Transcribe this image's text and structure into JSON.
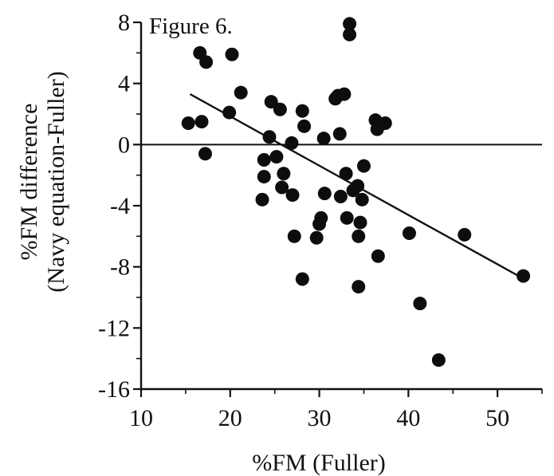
{
  "chart_data": {
    "type": "scatter",
    "title": "Figure 6.",
    "xlabel": "%FM (Fuller)",
    "ylabel_line1": "%FM difference",
    "ylabel_line2": "(Navy equation-Fuller)",
    "xlim": [
      10,
      55
    ],
    "ylim": [
      -16,
      8
    ],
    "x_ticks": [
      10,
      20,
      30,
      40,
      50
    ],
    "y_ticks": [
      8,
      4,
      0,
      -4,
      -8,
      -12,
      -16
    ],
    "x_tick_labels": [
      "10",
      "20",
      "30",
      "40",
      "50"
    ],
    "y_tick_labels": [
      "8",
      "4",
      "0",
      "-4",
      "-8",
      "-12",
      "-16"
    ],
    "zero_line": true,
    "grid": false,
    "trendline": {
      "x": [
        15.5,
        53
      ],
      "y": [
        3.3,
        -8.8
      ]
    },
    "points": [
      {
        "x": 15.3,
        "y": 1.4
      },
      {
        "x": 16.6,
        "y": 6.0
      },
      {
        "x": 16.8,
        "y": 1.5
      },
      {
        "x": 17.3,
        "y": 5.4
      },
      {
        "x": 17.2,
        "y": -0.6
      },
      {
        "x": 20.2,
        "y": 5.9
      },
      {
        "x": 19.9,
        "y": 2.1
      },
      {
        "x": 21.2,
        "y": 3.4
      },
      {
        "x": 23.6,
        "y": -3.6
      },
      {
        "x": 23.8,
        "y": -2.1
      },
      {
        "x": 23.8,
        "y": -1.0
      },
      {
        "x": 24.4,
        "y": 0.5
      },
      {
        "x": 24.6,
        "y": 2.8
      },
      {
        "x": 25.2,
        "y": -0.8
      },
      {
        "x": 25.6,
        "y": 2.3
      },
      {
        "x": 25.8,
        "y": -2.8
      },
      {
        "x": 26.0,
        "y": -1.9
      },
      {
        "x": 26.9,
        "y": 0.1
      },
      {
        "x": 27.0,
        "y": -3.3
      },
      {
        "x": 27.2,
        "y": -6.0
      },
      {
        "x": 28.1,
        "y": 2.2
      },
      {
        "x": 28.3,
        "y": 1.2
      },
      {
        "x": 28.1,
        "y": -8.8
      },
      {
        "x": 29.7,
        "y": -6.1
      },
      {
        "x": 30.0,
        "y": -5.2
      },
      {
        "x": 30.2,
        "y": -4.8
      },
      {
        "x": 30.5,
        "y": 0.4
      },
      {
        "x": 30.6,
        "y": -3.2
      },
      {
        "x": 31.8,
        "y": 3.0
      },
      {
        "x": 32.1,
        "y": 3.2
      },
      {
        "x": 32.3,
        "y": 0.7
      },
      {
        "x": 32.4,
        "y": -3.4
      },
      {
        "x": 32.8,
        "y": 3.3
      },
      {
        "x": 33.0,
        "y": -1.9
      },
      {
        "x": 33.1,
        "y": -4.8
      },
      {
        "x": 33.4,
        "y": 7.9
      },
      {
        "x": 33.4,
        "y": 7.2
      },
      {
        "x": 33.8,
        "y": -3.0
      },
      {
        "x": 34.3,
        "y": -2.7
      },
      {
        "x": 34.6,
        "y": -5.1
      },
      {
        "x": 34.4,
        "y": -6.0
      },
      {
        "x": 34.4,
        "y": -9.3
      },
      {
        "x": 34.8,
        "y": -3.6
      },
      {
        "x": 35.0,
        "y": -1.4
      },
      {
        "x": 36.3,
        "y": 1.6
      },
      {
        "x": 36.5,
        "y": 1.0
      },
      {
        "x": 37.4,
        "y": 1.4
      },
      {
        "x": 36.6,
        "y": -7.3
      },
      {
        "x": 40.1,
        "y": -5.8
      },
      {
        "x": 41.3,
        "y": -10.4
      },
      {
        "x": 43.4,
        "y": -14.1
      },
      {
        "x": 46.3,
        "y": -5.9
      },
      {
        "x": 52.9,
        "y": -8.6
      }
    ]
  }
}
